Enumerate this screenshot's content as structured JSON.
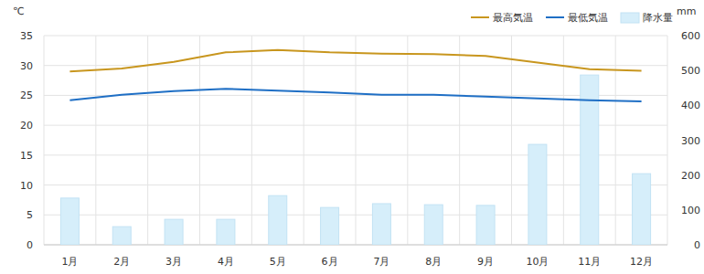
{
  "chart_data": {
    "type": "line",
    "ylabel": "℃",
    "y2label": "mm",
    "categories": [
      "1月",
      "2月",
      "3月",
      "4月",
      "5月",
      "6月",
      "7月",
      "8月",
      "9月",
      "10月",
      "11月",
      "12月"
    ],
    "series": [
      {
        "name": "最高気温",
        "type": "line",
        "color": "#c8961e",
        "values": [
          29.0,
          29.5,
          30.6,
          32.2,
          32.6,
          32.2,
          32.0,
          31.9,
          31.6,
          30.5,
          29.4,
          29.1
        ]
      },
      {
        "name": "最低気温",
        "type": "line",
        "color": "#1f6fc5",
        "values": [
          24.2,
          25.1,
          25.7,
          26.1,
          25.8,
          25.5,
          25.1,
          25.1,
          24.8,
          24.5,
          24.2,
          24.0
        ]
      },
      {
        "name": "降水量",
        "type": "bar",
        "axis": "y2",
        "color": "#d6eefa",
        "values": [
          134,
          52,
          73,
          73,
          141,
          107,
          118,
          115,
          113,
          288,
          487,
          204
        ]
      }
    ],
    "ylim": [
      0,
      35
    ],
    "yticks": [
      0,
      5,
      10,
      15,
      20,
      25,
      30,
      35
    ],
    "y2lim": [
      0,
      600
    ],
    "y2ticks": [
      0,
      100,
      200,
      300,
      400,
      500,
      600
    ],
    "grid": true,
    "legend": "top-right"
  }
}
